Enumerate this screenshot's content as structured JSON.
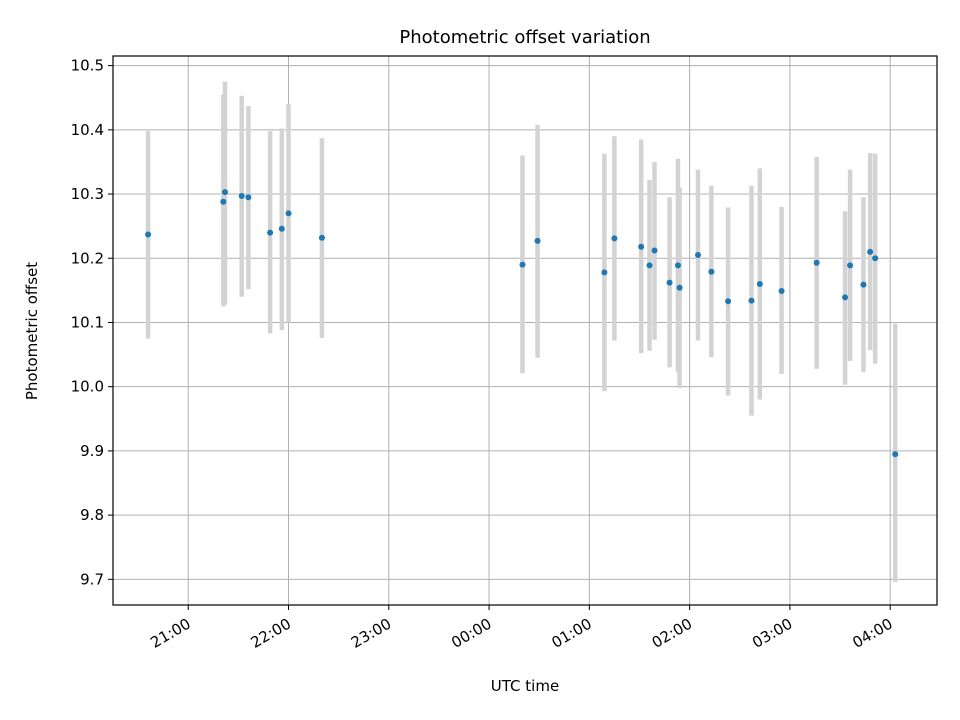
{
  "chart_data": {
    "type": "scatter",
    "title": "Photometric offset variation",
    "xlabel": "UTC time",
    "ylabel": "Photometric offset",
    "x_ticks": [
      "21:00",
      "22:00",
      "23:00",
      "00:00",
      "01:00",
      "02:00",
      "03:00",
      "04:00"
    ],
    "y_ticks": [
      "9.7",
      "9.8",
      "9.9",
      "10.0",
      "10.1",
      "10.2",
      "10.3",
      "10.4",
      "10.5"
    ],
    "xlim": [
      "2000-01-01 20:15",
      "2000-01-02 04:28"
    ],
    "ylim": [
      9.66,
      10.515
    ],
    "grid": true,
    "colors": {
      "points": "#1f77b4",
      "errorbars": "#d3d3d3",
      "grid": "#b0b0b0"
    },
    "series": [
      {
        "points": [
          {
            "x": "2000-01-01 20:36",
            "y": 10.237,
            "ylow": 10.075,
            "yhigh": 10.398
          },
          {
            "x": "2000-01-01 21:21",
            "y": 10.288,
            "ylow": 10.125,
            "yhigh": 10.455
          },
          {
            "x": "2000-01-01 21:22",
            "y": 10.303,
            "ylow": 10.128,
            "yhigh": 10.475
          },
          {
            "x": "2000-01-01 21:32",
            "y": 10.297,
            "ylow": 10.14,
            "yhigh": 10.453
          },
          {
            "x": "2000-01-01 21:36",
            "y": 10.295,
            "ylow": 10.152,
            "yhigh": 10.437
          },
          {
            "x": "2000-01-01 21:49",
            "y": 10.24,
            "ylow": 10.083,
            "yhigh": 10.398
          },
          {
            "x": "2000-01-01 21:56",
            "y": 10.246,
            "ylow": 10.088,
            "yhigh": 10.402
          },
          {
            "x": "2000-01-01 22:00",
            "y": 10.27,
            "ylow": 10.1,
            "yhigh": 10.44
          },
          {
            "x": "2000-01-01 22:20",
            "y": 10.232,
            "ylow": 10.076,
            "yhigh": 10.387
          },
          {
            "x": "2000-01-02 00:20",
            "y": 10.19,
            "ylow": 10.021,
            "yhigh": 10.36
          },
          {
            "x": "2000-01-02 00:29",
            "y": 10.227,
            "ylow": 10.045,
            "yhigh": 10.408
          },
          {
            "x": "2000-01-02 01:09",
            "y": 10.178,
            "ylow": 9.993,
            "yhigh": 10.363
          },
          {
            "x": "2000-01-02 01:15",
            "y": 10.231,
            "ylow": 10.072,
            "yhigh": 10.39
          },
          {
            "x": "2000-01-02 01:31",
            "y": 10.218,
            "ylow": 10.052,
            "yhigh": 10.385
          },
          {
            "x": "2000-01-02 01:36",
            "y": 10.189,
            "ylow": 10.056,
            "yhigh": 10.322
          },
          {
            "x": "2000-01-02 01:39",
            "y": 10.212,
            "ylow": 10.073,
            "yhigh": 10.35
          },
          {
            "x": "2000-01-02 01:48",
            "y": 10.162,
            "ylow": 10.03,
            "yhigh": 10.295
          },
          {
            "x": "2000-01-02 01:53",
            "y": 10.189,
            "ylow": 10.022,
            "yhigh": 10.355
          },
          {
            "x": "2000-01-02 01:54",
            "y": 10.154,
            "ylow": 9.998,
            "yhigh": 10.31
          },
          {
            "x": "2000-01-02 02:05",
            "y": 10.205,
            "ylow": 10.072,
            "yhigh": 10.338
          },
          {
            "x": "2000-01-02 02:13",
            "y": 10.179,
            "ylow": 10.046,
            "yhigh": 10.313
          },
          {
            "x": "2000-01-02 02:23",
            "y": 10.133,
            "ylow": 9.986,
            "yhigh": 10.279
          },
          {
            "x": "2000-01-02 02:37",
            "y": 10.134,
            "ylow": 9.955,
            "yhigh": 10.313
          },
          {
            "x": "2000-01-02 02:42",
            "y": 10.16,
            "ylow": 9.98,
            "yhigh": 10.34
          },
          {
            "x": "2000-01-02 02:55",
            "y": 10.149,
            "ylow": 10.02,
            "yhigh": 10.28
          },
          {
            "x": "2000-01-02 03:16",
            "y": 10.193,
            "ylow": 10.028,
            "yhigh": 10.358
          },
          {
            "x": "2000-01-02 03:33",
            "y": 10.139,
            "ylow": 10.003,
            "yhigh": 10.273
          },
          {
            "x": "2000-01-02 03:36",
            "y": 10.189,
            "ylow": 10.04,
            "yhigh": 10.338
          },
          {
            "x": "2000-01-02 03:44",
            "y": 10.159,
            "ylow": 10.023,
            "yhigh": 10.295
          },
          {
            "x": "2000-01-02 03:48",
            "y": 10.21,
            "ylow": 10.057,
            "yhigh": 10.364
          },
          {
            "x": "2000-01-02 03:51",
            "y": 10.2,
            "ylow": 10.036,
            "yhigh": 10.363
          },
          {
            "x": "2000-01-02 04:03",
            "y": 9.895,
            "ylow": 9.696,
            "yhigh": 10.098
          }
        ]
      }
    ]
  }
}
